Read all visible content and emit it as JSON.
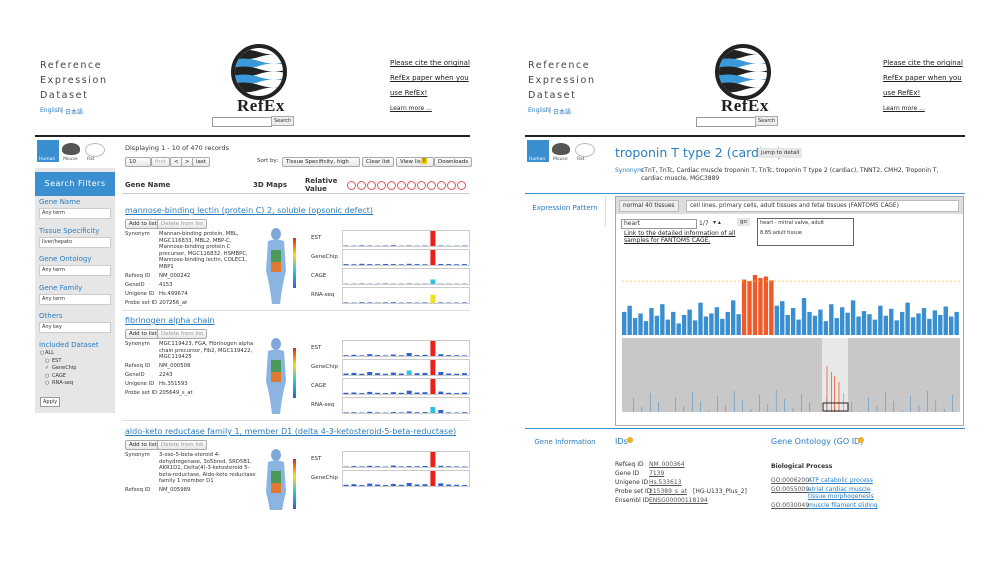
{
  "header": {
    "site_name": [
      "Reference",
      "Expression",
      "Dataset"
    ],
    "logo": "RefEx",
    "search_button": "Search",
    "languages": [
      "English",
      "日本語"
    ],
    "cite": [
      "Please cite the original",
      "RefEx paper when you",
      "use RefEx!"
    ],
    "learn_more": "Learn more ..."
  },
  "species": [
    "Human",
    "Mouse",
    "Rat"
  ],
  "left": {
    "filters": {
      "title": "Search Filters",
      "groups": [
        {
          "label": "Gene Name",
          "value": "Any term"
        },
        {
          "label": "Tissue Specificity",
          "value": "liver/hepato"
        },
        {
          "label": "Gene Ontology",
          "value": "Any term"
        },
        {
          "label": "Gene Family",
          "value": "Any term"
        },
        {
          "label": "Others",
          "value": "Any key"
        }
      ],
      "dataset_label": "Included Dataset",
      "datasets": [
        {
          "label": "ALL",
          "checked": false
        },
        {
          "label": "EST",
          "checked": false
        },
        {
          "label": "GeneChip",
          "checked": true
        },
        {
          "label": "CAGE",
          "checked": false
        },
        {
          "label": "RNA-seq",
          "checked": false
        }
      ],
      "apply": "Apply"
    },
    "results": {
      "summary": "Displaying 1 - 10 of 470 records",
      "per_page": "10",
      "pager": [
        "first",
        "<",
        ">",
        "last"
      ],
      "sort_label": "Sort by:",
      "sort_value": "Tissue Specificity, high",
      "clear": "Clear list",
      "view": "View list",
      "view_count": "0",
      "downloads": "Downloads",
      "columns": [
        "Gene Name",
        "3D Maps",
        "Relative Value"
      ],
      "add": "Add to list",
      "delete": "Delete from list",
      "data_rows": [
        "EST",
        "GeneChip",
        "CAGE",
        "RNA-seq"
      ],
      "mini_ylim": [
        0,
        100
      ],
      "genes": [
        {
          "name": "mannose-binding lectin (protein C) 2, soluble (opsonic defect)",
          "fields": [
            {
              "label": "Synonym",
              "value": "Mannan-binding protein, MBL, MGC116833, MBL2, MBP-C, Mannose-binding protein C precursor, MGC116832, HSMBPC, Mannose-binding lectin, COLEC1, MBP1"
            },
            {
              "label": "Refseq ID",
              "value": "NM_000242"
            },
            {
              "label": "GeneID",
              "value": "4153"
            },
            {
              "label": "Unigene ID",
              "value": "Hs.499674"
            },
            {
              "label": "Probe set ID",
              "value": "207256_at"
            }
          ],
          "charts": [
            [
              3,
              2,
              4,
              3,
              2,
              3,
              5,
              2,
              3,
              2,
              3,
              100,
              3,
              2,
              2,
              3
            ],
            [
              6,
              5,
              8,
              6,
              5,
              7,
              6,
              5,
              8,
              6,
              5,
              100,
              7,
              6,
              5,
              6
            ],
            [
              2,
              2,
              3,
              2,
              2,
              3,
              2,
              2,
              3,
              2,
              2,
              30,
              2,
              2,
              2,
              2
            ],
            [
              4,
              3,
              5,
              4,
              3,
              4,
              5,
              3,
              4,
              3,
              4,
              55,
              4,
              3,
              3,
              4
            ]
          ]
        },
        {
          "name": "fibrinogen alpha chain",
          "fields": [
            {
              "label": "Synonym",
              "value": "MGC119423, FGA, Fibrinogen alpha chain precursor, Fib2, MGC119422, MGC119425"
            },
            {
              "label": "Refseq ID",
              "value": "NM_000508"
            },
            {
              "label": "GeneID",
              "value": "2243"
            },
            {
              "label": "Unigene ID",
              "value": "Hs.351593"
            },
            {
              "label": "Probe set ID",
              "value": "205649_s_at"
            }
          ],
          "charts": [
            [
              5,
              8,
              4,
              12,
              6,
              4,
              10,
              5,
              20,
              6,
              8,
              100,
              12,
              6,
              5,
              4
            ],
            [
              10,
              14,
              8,
              20,
              12,
              8,
              16,
              10,
              30,
              12,
              14,
              100,
              20,
              10,
              8,
              12
            ],
            [
              8,
              10,
              6,
              14,
              8,
              6,
              12,
              8,
              22,
              10,
              12,
              100,
              16,
              8,
              6,
              10
            ],
            [
              4,
              5,
              3,
              8,
              4,
              3,
              6,
              4,
              10,
              5,
              6,
              40,
              20,
              4,
              3,
              5
            ]
          ]
        },
        {
          "name": "aldo-keto reductase family 1, member D1 (delta 4-3-ketosteroid-5-beta-reductase)",
          "fields": [
            {
              "label": "Synonym",
              "value": "3-oxo-5-beta-steroid 4-dehydrogenase, 3o5bred, SRD5B1, AKR1D1, Delta(4)-3-ketosteroid 5-beta-reductase, Aldo-keto reductase family 1 member D1"
            },
            {
              "label": "Refseq ID",
              "value": "NM_005989"
            }
          ],
          "charts": [
            [
              3,
              6,
              4,
              8,
              5,
              3,
              10,
              4,
              6,
              5,
              7,
              100,
              8,
              5,
              4,
              3
            ],
            [
              8,
              12,
              6,
              16,
              10,
              6,
              14,
              8,
              20,
              10,
              12,
              100,
              18,
              10,
              8,
              6
            ]
          ]
        }
      ]
    }
  },
  "right": {
    "gene": {
      "title": "troponin T type 2 (cardiac)",
      "jump": "jump to detail",
      "synonym_label": "Synonym",
      "synonym": "cTnT, TnTc, Cardiac muscle troponin T, TnTc, troponin T type 2 (cardiac), TNNT2, CMH2, Troponin T, cardiac muscle, MGC3889"
    },
    "sections": [
      "Expression Pattern",
      "Gene Information"
    ],
    "tabs": [
      "normal 40 tissues",
      "cell lines, primary cells, adult tissues and fetal tissues (FANTOM5 CAGE)"
    ],
    "search": {
      "value": "heart",
      "page": "1/7",
      "go": "go"
    },
    "detail_link": "Link to the detailed information of all samples for FANTOM5 CAGE.",
    "tooltip": [
      "heart - mitral valve, adult",
      "8.85:adult tissue"
    ],
    "chart": {
      "type": "bar",
      "ylim": [
        0,
        100
      ],
      "threshold": 70,
      "threshold_color": "#f0c040",
      "values": [
        30,
        38,
        22,
        28,
        18,
        35,
        25,
        40,
        20,
        30,
        15,
        26,
        33,
        19,
        42,
        24,
        28,
        36,
        21,
        30,
        45,
        27,
        72,
        70,
        78,
        74,
        76,
        71,
        38,
        44,
        26,
        35,
        20,
        48,
        30,
        25,
        33,
        18,
        40,
        22,
        36,
        29,
        45,
        24,
        31,
        27,
        20,
        38,
        25,
        34,
        19,
        30,
        42,
        23,
        28,
        35,
        21,
        32,
        26,
        37,
        24,
        30
      ],
      "colors": [
        "#3a8fd0",
        "#3a8fd0",
        "#3a8fd0",
        "#3a8fd0",
        "#3a8fd0",
        "#3a8fd0",
        "#3a8fd0",
        "#3a8fd0",
        "#3a8fd0",
        "#3a8fd0",
        "#3a8fd0",
        "#3a8fd0",
        "#3a8fd0",
        "#3a8fd0",
        "#3a8fd0",
        "#3a8fd0",
        "#3a8fd0",
        "#3a8fd0",
        "#3a8fd0",
        "#3a8fd0",
        "#3a8fd0",
        "#3a8fd0",
        "#f05a28",
        "#f05a28",
        "#f05a28",
        "#f05a28",
        "#f05a28",
        "#f05a28",
        "#3a8fd0",
        "#3a8fd0",
        "#3a8fd0",
        "#3a8fd0",
        "#3a8fd0",
        "#3a8fd0",
        "#3a8fd0",
        "#3a8fd0",
        "#3a8fd0",
        "#3a8fd0",
        "#3a8fd0",
        "#3a8fd0",
        "#3a8fd0",
        "#3a8fd0",
        "#3a8fd0",
        "#3a8fd0",
        "#3a8fd0",
        "#3a8fd0",
        "#3a8fd0",
        "#3a8fd0",
        "#3a8fd0",
        "#3a8fd0",
        "#3a8fd0",
        "#3a8fd0",
        "#3a8fd0",
        "#3a8fd0",
        "#3a8fd0",
        "#3a8fd0",
        "#3a8fd0",
        "#3a8fd0",
        "#3a8fd0",
        "#3a8fd0",
        "#3a8fd0",
        "#3a8fd0"
      ]
    },
    "ids": {
      "title": "IDs",
      "rows": [
        {
          "label": "Refseq ID",
          "value": "NM_000364"
        },
        {
          "label": "Gene ID",
          "value": "7139"
        },
        {
          "label": "Unigene ID",
          "value": "Hs.533613"
        },
        {
          "label": "Probe set ID",
          "value": "215389_s_at",
          "extra": "[HG-U133_Plus_2]"
        },
        {
          "label": "Ensembl ID",
          "value": "ENSG00000118194"
        }
      ]
    },
    "go": {
      "title": "Gene Ontology (GO ID)",
      "category": "Biological Process",
      "terms": [
        {
          "id": "GO:0006200",
          "label": "ATP catabolic process"
        },
        {
          "id": "GO:0055009",
          "label": "atrial cardiac muscle tissue morphogenesis"
        },
        {
          "id": "GO:0030049",
          "label": "muscle filament sliding"
        }
      ]
    }
  }
}
